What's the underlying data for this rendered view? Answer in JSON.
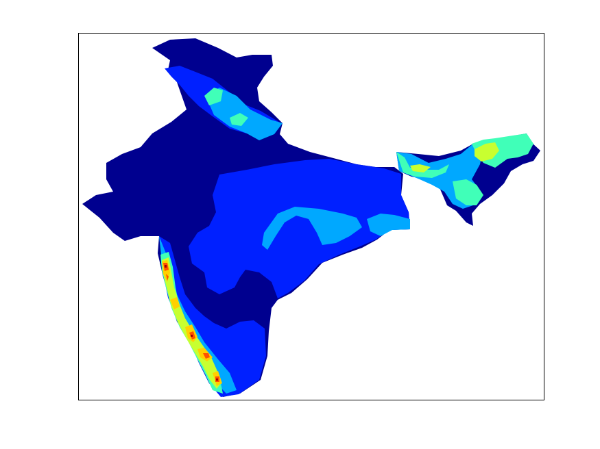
{
  "figure": {
    "type": "filled-contour-map",
    "region": "India",
    "colormap": "jet",
    "axes_visible": false,
    "colorbar": false
  },
  "palette": {
    "level_1": "#00008f",
    "level_2": "#0020ff",
    "level_3": "#00a8ff",
    "level_4": "#40ffb8",
    "level_5": "#c8ff30",
    "level_6": "#ffd000",
    "level_7": "#ff5000",
    "level_8": "#a00000"
  }
}
